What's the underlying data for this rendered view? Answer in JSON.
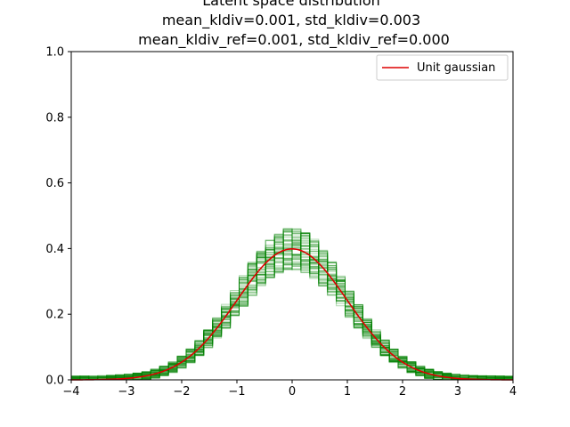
{
  "chart_data": {
    "type": "histogram",
    "title_lines": [
      "Latent space distribution",
      "mean_kldiv=0.001, std_kldiv=0.003",
      "mean_kldiv_ref=0.001, std_kldiv_ref=0.000"
    ],
    "xlabel": "",
    "ylabel": "",
    "xlim": [
      -4,
      4
    ],
    "ylim": [
      0,
      1.0
    ],
    "x_ticks": [
      -4,
      -3,
      -2,
      -1,
      0,
      1,
      2,
      3,
      4
    ],
    "x_tick_labels": [
      "−4",
      "−3",
      "−2",
      "−1",
      "0",
      "1",
      "2",
      "3",
      "4"
    ],
    "y_ticks": [
      0.0,
      0.2,
      0.4,
      0.6,
      0.8,
      1.0
    ],
    "y_tick_labels": [
      "0.0",
      "0.2",
      "0.4",
      "0.6",
      "0.8",
      "1.0"
    ],
    "grid": false,
    "legend": {
      "placement": "upper-right",
      "entries": [
        "Unit gaussian"
      ]
    },
    "series": [
      {
        "kind": "step-histograms",
        "color": "#008000",
        "opacity": 0.3,
        "count": 60,
        "bins": 50,
        "peak_density": 0.4,
        "peak_spread": [
          0.35,
          0.49
        ]
      },
      {
        "name": "Unit gaussian",
        "kind": "line",
        "color": "#dd0000",
        "function": "standard normal pdf",
        "mean": 0,
        "std": 1,
        "peak": 0.399
      }
    ]
  }
}
